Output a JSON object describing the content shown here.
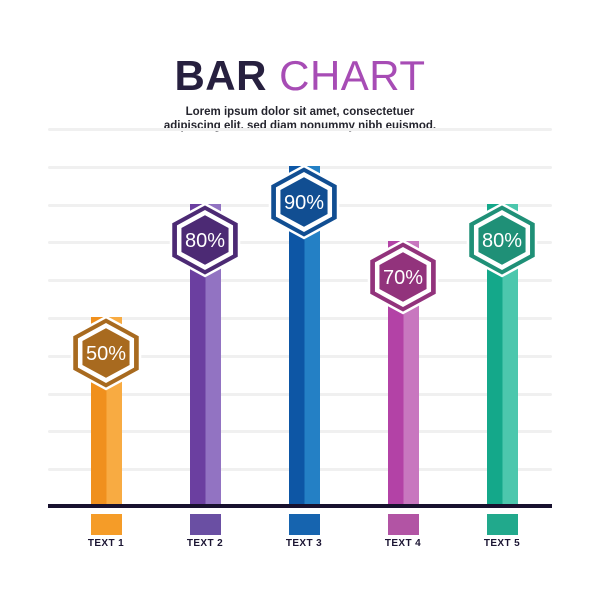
{
  "title": {
    "bold": "BAR",
    "light": "CHART"
  },
  "subtitle_line1": "Lorem ipsum dolor sit amet, consectetuer",
  "subtitle_line2": "adipiscing elit, sed diam nonummy nibh euismod.",
  "colors": {
    "background": "#ffffff",
    "title_bold": "#27203f",
    "title_accent": "#a74cb5",
    "subtitle_text": "#25252e",
    "gridline": "#f0f0f0",
    "axis_line": "#18112e",
    "category_label": "#1b1533",
    "hex_value_text": "#ffffff"
  },
  "chart_data": {
    "type": "bar",
    "title": "BAR CHART",
    "categories": [
      "TEXT 1",
      "TEXT 2",
      "TEXT 3",
      "TEXT 4",
      "TEXT 5"
    ],
    "values": [
      50,
      80,
      90,
      70,
      80
    ],
    "value_labels": [
      "50%",
      "80%",
      "90%",
      "70%",
      "80%"
    ],
    "xlabel": "",
    "ylabel": "",
    "ylim": [
      0,
      100
    ],
    "grid": true,
    "gridline_step_percent": 10,
    "legend_position": "below-axis",
    "series_styles": [
      {
        "bar_left": "#f0901d",
        "bar_right": "#f8ab42",
        "hexagon": "#a86a1f",
        "swatch": "#f59c28"
      },
      {
        "bar_left": "#6b3fa0",
        "bar_right": "#9273c2",
        "hexagon": "#4c2a74",
        "swatch": "#6a4fa3"
      },
      {
        "bar_left": "#0d56a5",
        "bar_right": "#2480c5",
        "hexagon": "#114e92",
        "swatch": "#1664af"
      },
      {
        "bar_left": "#b342a6",
        "bar_right": "#c877bf",
        "hexagon": "#92337c",
        "swatch": "#b254a4"
      },
      {
        "bar_left": "#14a88a",
        "bar_right": "#4cc7ad",
        "hexagon": "#1f9077",
        "swatch": "#21a98c"
      }
    ]
  }
}
